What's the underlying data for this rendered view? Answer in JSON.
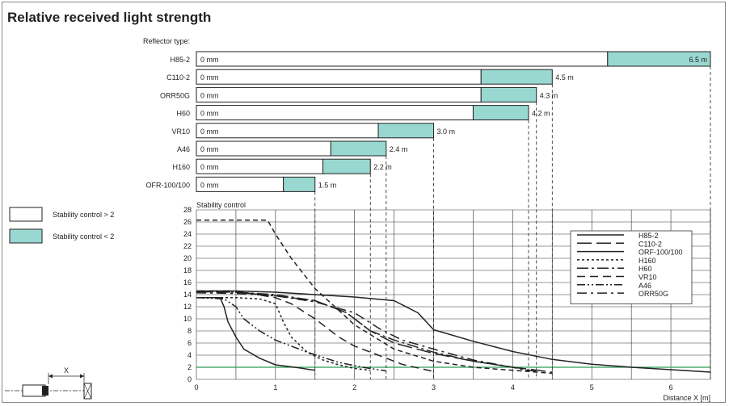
{
  "title": "Relative received light strength",
  "colors": {
    "stable_high": "#ffffff",
    "stable_low": "#99d8d0",
    "threshold_line": "#2e9b56",
    "curves": "#222222"
  },
  "legend_left": {
    "items": [
      {
        "label": "Stability control > 2",
        "swatch": "white"
      },
      {
        "label": "Stability control < 2",
        "swatch": "teal"
      }
    ]
  },
  "sketch": {
    "label": "X"
  },
  "chart_data": [
    {
      "type": "bar",
      "subtype": "range",
      "title": "Reflector type:",
      "start_label": "0 mm",
      "categories": [
        "H85-2",
        "C110-2",
        "ORR50G",
        "H60",
        "VR10",
        "A46",
        "H160",
        "OFR-100/100"
      ],
      "stable_until": [
        5.2,
        3.6,
        3.6,
        3.5,
        2.3,
        1.7,
        1.6,
        1.1
      ],
      "max_range": [
        6.5,
        4.5,
        4.3,
        4.2,
        3.0,
        2.4,
        2.2,
        1.5
      ],
      "max_labels": [
        "6.5 m",
        "4.5 m",
        "4.3 m",
        "4.2 m",
        "3.0 m",
        "2.4 m",
        "2.2 m",
        "1.5 m"
      ],
      "xlim": [
        0,
        6.5
      ]
    },
    {
      "type": "line",
      "title": "Stability control",
      "xlabel": "Distance X [m]",
      "xlim": [
        0,
        6.5
      ],
      "ylim": [
        0,
        28
      ],
      "xticks": [
        0,
        1,
        2,
        3,
        4,
        5,
        6
      ],
      "yticks": [
        0,
        2,
        4,
        6,
        8,
        10,
        12,
        14,
        16,
        18,
        20,
        22,
        24,
        26,
        28
      ],
      "threshold": 2,
      "grid": true,
      "legend_position": "right",
      "series": [
        {
          "name": "H85-2",
          "dash": "",
          "x": [
            0,
            0.5,
            1.0,
            1.5,
            2.0,
            2.5,
            2.8,
            3.0,
            3.5,
            4.0,
            4.5,
            5.0,
            5.5,
            6.0,
            6.5
          ],
          "y": [
            14.6,
            14.6,
            14.4,
            14.0,
            13.6,
            13.0,
            11.0,
            8.2,
            6.3,
            4.6,
            3.3,
            2.5,
            2.0,
            1.6,
            1.2
          ]
        },
        {
          "name": "C110-2",
          "dash": "18,6",
          "x": [
            0,
            0.5,
            1.0,
            1.5,
            1.9,
            2.2,
            2.5,
            3.0,
            3.5,
            4.0,
            4.5
          ],
          "y": [
            14.5,
            14.4,
            13.8,
            13.0,
            11.0,
            8.0,
            6.0,
            4.3,
            3.0,
            2.0,
            1.2
          ]
        },
        {
          "name": "ORF-100/100",
          "dash": "",
          "x": [
            0,
            0.3,
            0.35,
            0.4,
            0.5,
            0.6,
            0.8,
            1.0,
            1.3,
            1.5
          ],
          "y": [
            13.5,
            13.5,
            12.0,
            9.5,
            7.0,
            5.0,
            3.5,
            2.4,
            1.9,
            1.5
          ]
        },
        {
          "name": "H160",
          "dash": "3,3",
          "x": [
            0,
            0.5,
            0.8,
            1.0,
            1.1,
            1.2,
            1.4,
            1.6,
            1.8,
            2.0,
            2.2
          ],
          "y": [
            13.5,
            13.5,
            13.3,
            12.5,
            9.5,
            7.0,
            4.5,
            3.2,
            2.4,
            1.8,
            1.5
          ]
        },
        {
          "name": "H60",
          "dash": "14,4,3,4",
          "x": [
            0,
            0.5,
            1.0,
            1.5,
            1.9,
            2.2,
            2.5,
            3.0,
            3.5,
            4.0,
            4.2
          ],
          "y": [
            14.5,
            14.4,
            14.0,
            13.0,
            11.0,
            8.0,
            6.5,
            4.5,
            3.0,
            2.0,
            1.4
          ]
        },
        {
          "name": "VR10",
          "dash": "10,6",
          "x": [
            0,
            0.5,
            1.0,
            1.2,
            1.5,
            1.8,
            2.0,
            2.3,
            2.6,
            3.0
          ],
          "y": [
            14.6,
            14.6,
            13.5,
            12.5,
            10.0,
            7.0,
            5.5,
            4.0,
            2.5,
            1.3
          ]
        },
        {
          "name": "A46",
          "dash": "10,3,2,3,2,3",
          "x": [
            0,
            0.35,
            0.5,
            0.6,
            0.8,
            1.0,
            1.4,
            1.8,
            2.1,
            2.4
          ],
          "y": [
            13.5,
            13.3,
            12.0,
            10.0,
            8.0,
            6.5,
            4.5,
            2.8,
            2.0,
            1.4
          ]
        },
        {
          "name": "ORR50G",
          "dash": "12,5,3,5",
          "x": [
            0,
            0.5,
            1.0,
            1.5,
            2.0,
            2.3,
            2.6,
            3.0,
            3.5,
            4.0,
            4.3
          ],
          "y": [
            14.3,
            14.2,
            13.8,
            12.8,
            11.0,
            8.5,
            6.5,
            5.0,
            3.2,
            2.0,
            1.3
          ]
        },
        {
          "name": "",
          "dash": "6,4",
          "x": [
            0,
            0.9,
            1.0,
            1.2,
            1.5,
            2.0,
            2.5,
            3.0,
            3.5,
            4.0,
            4.5
          ],
          "y": [
            26.3,
            26.3,
            24.0,
            20.0,
            15.0,
            9.0,
            5.0,
            3.0,
            2.0,
            1.5,
            1.0
          ]
        }
      ]
    }
  ]
}
